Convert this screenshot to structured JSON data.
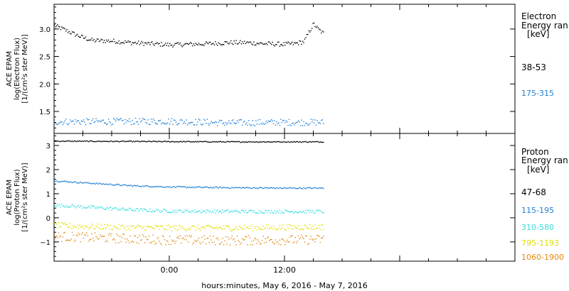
{
  "xaxis": {
    "label": "hours:minutes, May  6, 2016 - May  7, 2016",
    "range_hours": [
      -12,
      36
    ],
    "ticks": [
      {
        "hour": 0,
        "label": "0:00"
      },
      {
        "hour": 12,
        "label": "12:00"
      }
    ],
    "data_end_hour": 16
  },
  "chart_data": [
    {
      "type": "scatter",
      "panel": "electron",
      "ylabel": [
        "ACE EPAM",
        "log(Electron Flux)",
        "[1/(cm²s ster MeV)]"
      ],
      "ylim": [
        1.1,
        3.45
      ],
      "yticks": [
        1.5,
        2.0,
        2.5,
        3.0
      ],
      "ytick_labels": [
        "1.5",
        "2.0",
        "2.5",
        "3.0"
      ],
      "legend_title": [
        "Electron",
        "Energy ran",
        "[keV]"
      ],
      "series": [
        {
          "name": "38-53",
          "color": "#000000",
          "spread": 0.04,
          "x": [
            -12,
            -11,
            -10,
            -9,
            -8,
            -6,
            -4,
            -2,
            0,
            2,
            4,
            6,
            8,
            10,
            12,
            13,
            14,
            14.5,
            15,
            15.5,
            16
          ],
          "y": [
            3.07,
            3.0,
            2.92,
            2.85,
            2.8,
            2.79,
            2.76,
            2.74,
            2.72,
            2.73,
            2.74,
            2.76,
            2.76,
            2.74,
            2.73,
            2.74,
            2.78,
            2.95,
            3.1,
            3.0,
            2.93
          ]
        },
        {
          "name": "175-315",
          "color": "#1f7fd4",
          "spread": 0.06,
          "x": [
            -12,
            0,
            6,
            12,
            16
          ],
          "y": [
            1.32,
            1.33,
            1.3,
            1.31,
            1.31
          ]
        }
      ]
    },
    {
      "type": "scatter",
      "panel": "proton",
      "ylabel": [
        "ACE EPAM",
        "log(Proton Flux)",
        "[1/(cm²s ster MeV)]"
      ],
      "ylim": [
        -1.8,
        3.5
      ],
      "yticks": [
        -1,
        0,
        1,
        2,
        3
      ],
      "ytick_labels": [
        "−1",
        "0",
        "1",
        "2",
        "3"
      ],
      "legend_title": [
        "Proton",
        "Energy ran",
        "[keV]"
      ],
      "series": [
        {
          "name": "47-68",
          "color": "#000000",
          "spread": 0.02,
          "x": [
            -12,
            0,
            6,
            12,
            16
          ],
          "y": [
            3.2,
            3.18,
            3.17,
            3.17,
            3.17
          ]
        },
        {
          "name": "115-195",
          "color": "#1f7fd4",
          "spread": 0.03,
          "x": [
            -12,
            -8,
            -4,
            0,
            6,
            12,
            16
          ],
          "y": [
            1.55,
            1.45,
            1.35,
            1.3,
            1.27,
            1.25,
            1.25
          ]
        },
        {
          "name": "310-580",
          "color": "#33dddd",
          "spread": 0.07,
          "x": [
            -12,
            -8,
            -4,
            0,
            6,
            12,
            16
          ],
          "y": [
            0.55,
            0.45,
            0.35,
            0.3,
            0.28,
            0.28,
            0.28
          ]
        },
        {
          "name": "795-1193",
          "color": "#dddd00",
          "spread": 0.12,
          "x": [
            -12,
            -8,
            -4,
            0,
            6,
            12,
            16
          ],
          "y": [
            -0.3,
            -0.35,
            -0.38,
            -0.4,
            -0.4,
            -0.38,
            -0.36
          ]
        },
        {
          "name": "1060-1900",
          "color": "#e08a10",
          "spread": 0.2,
          "x": [
            -12,
            -8,
            -4,
            0,
            6,
            12,
            16
          ],
          "y": [
            -0.75,
            -0.8,
            -0.85,
            -0.9,
            -0.92,
            -0.9,
            -0.88
          ]
        }
      ]
    }
  ]
}
